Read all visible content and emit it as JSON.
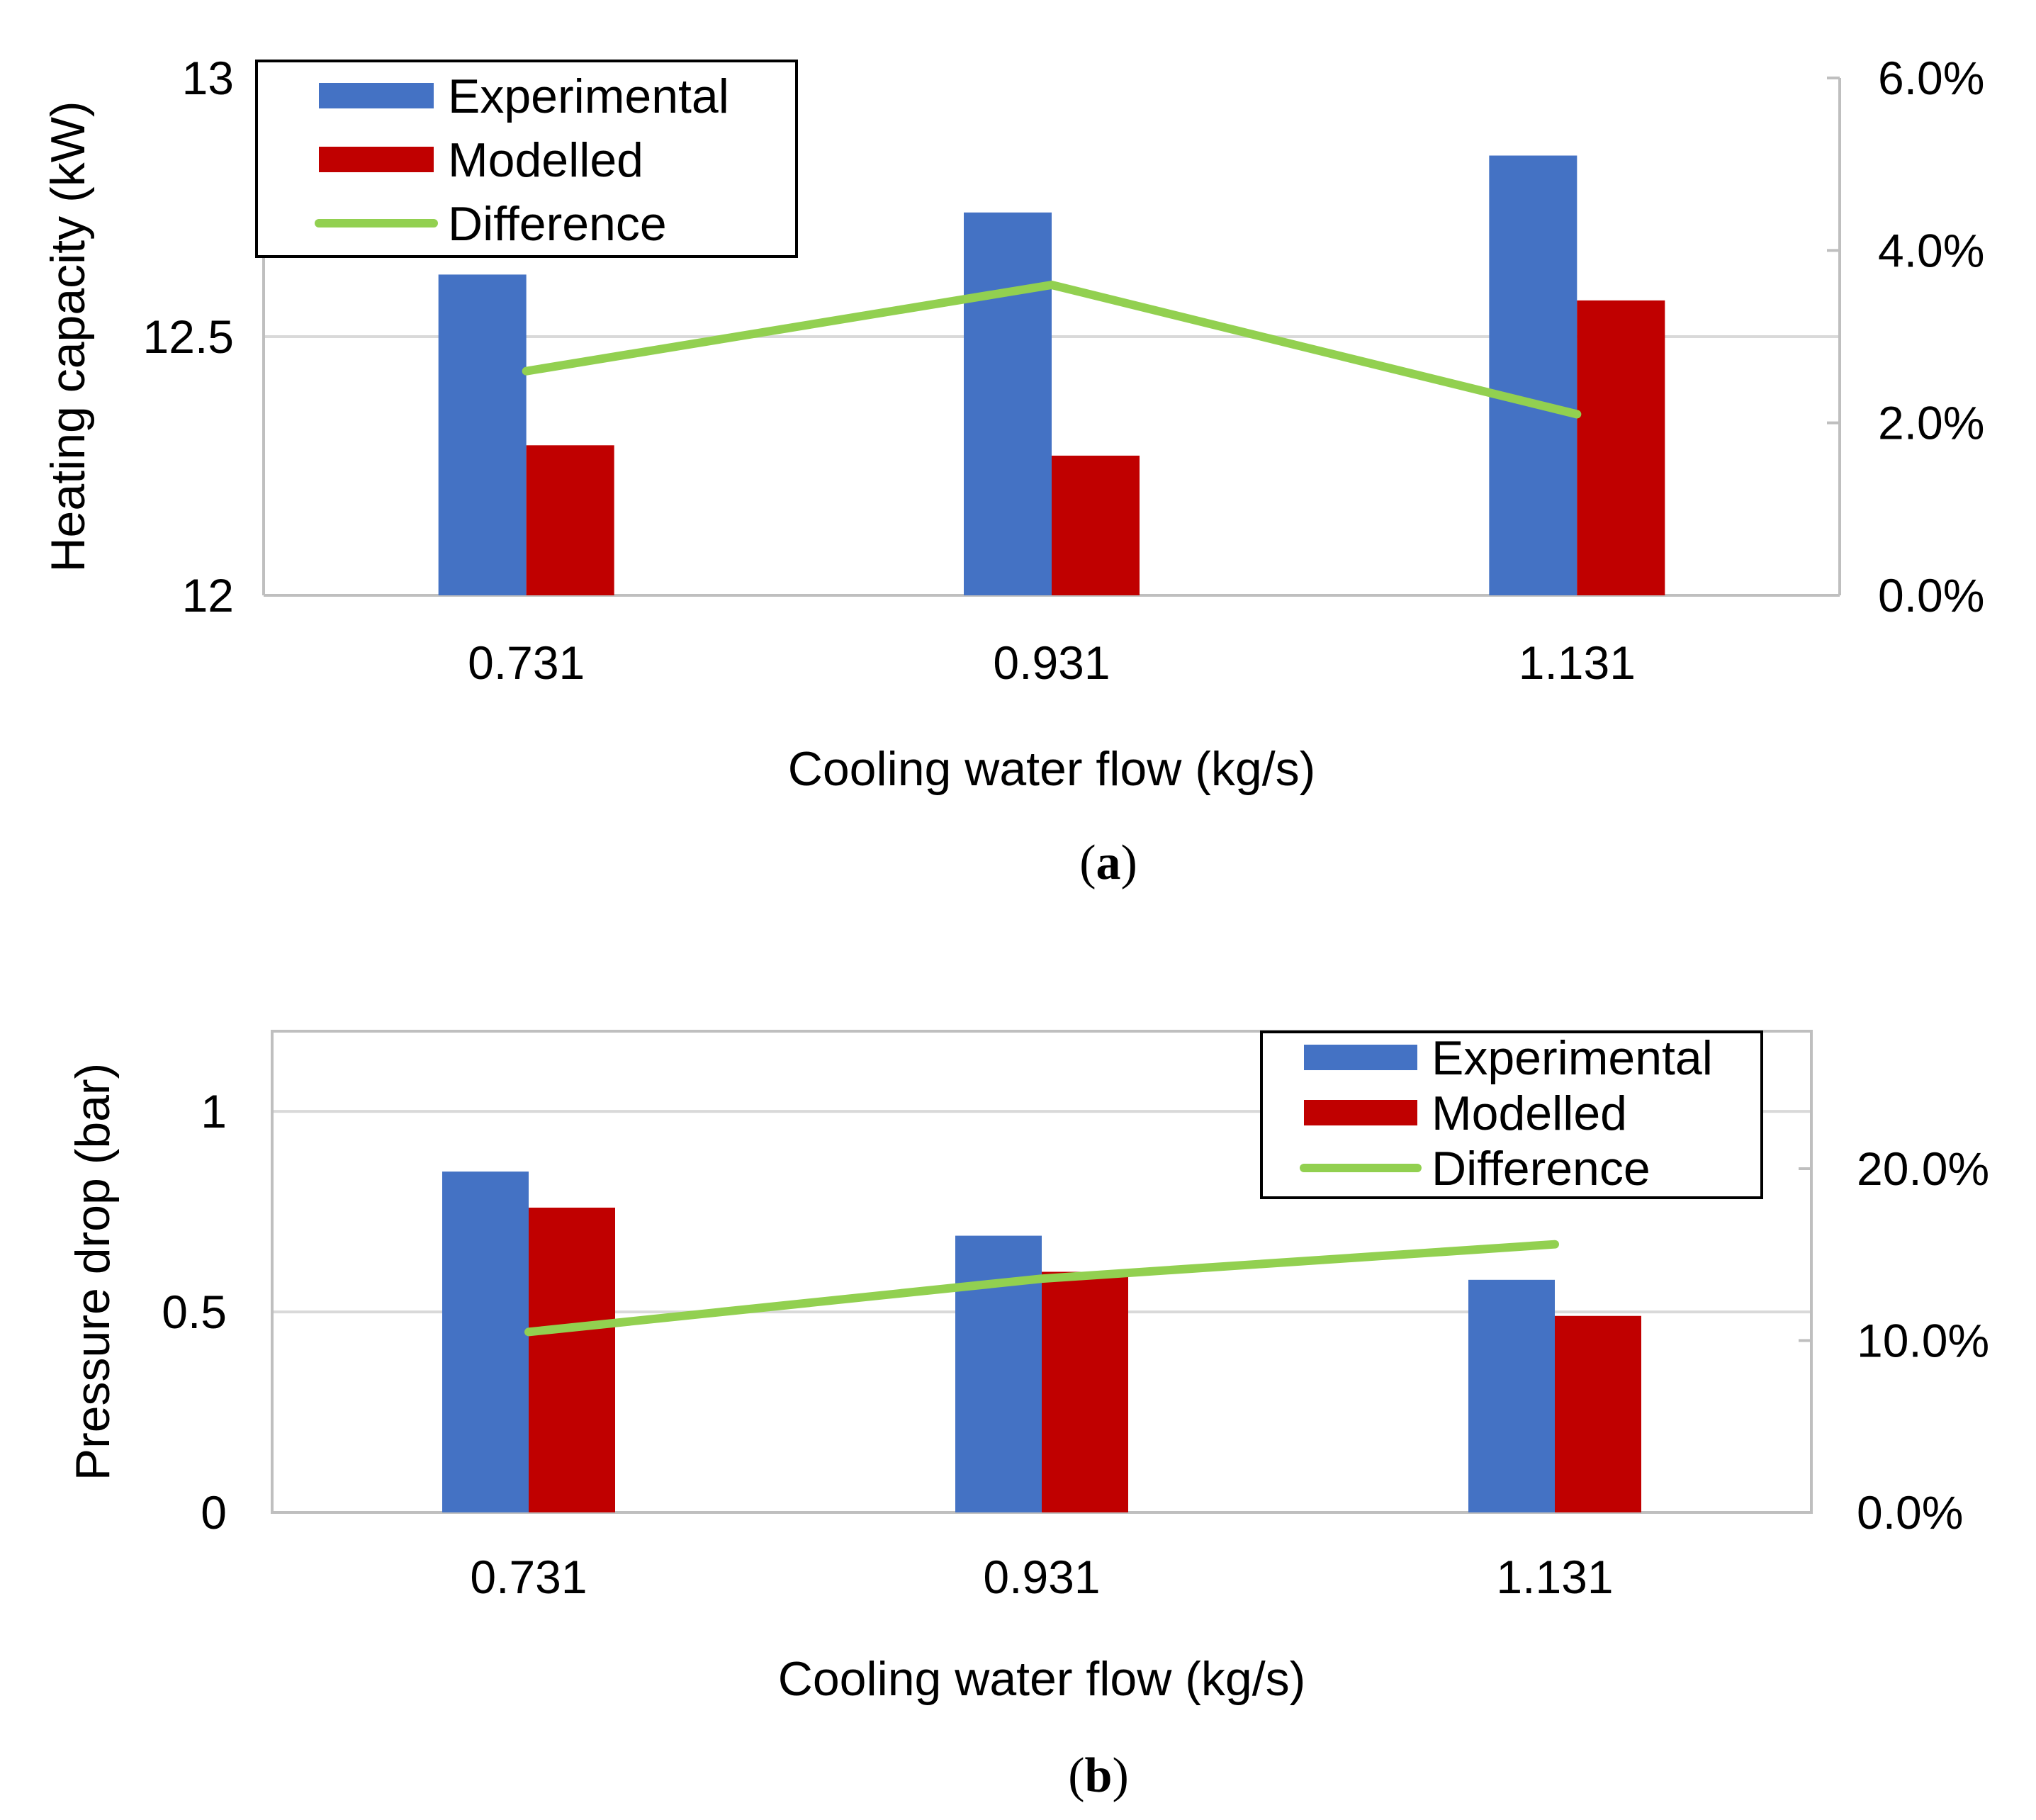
{
  "chart_data": [
    {
      "type": "bar",
      "panel": "a",
      "caption_letter": "a",
      "categories": [
        "0.731",
        "0.931",
        "1.131"
      ],
      "xlabel": "Cooling water flow (kg/s)",
      "ylabel": "Heating capacity (kW)",
      "ylim": [
        12,
        13
      ],
      "y_ticks": [
        "12",
        "12.5",
        "13"
      ],
      "y2lim": [
        0,
        0.06
      ],
      "y2_ticks": [
        "0.0%",
        "2.0%",
        "4.0%",
        "6.0%"
      ],
      "legend_position": "top-left",
      "colors": {
        "experimental": "#4472C4",
        "modelled": "#C00000",
        "difference": "#92D050",
        "grid": "#D9D9D9",
        "axis": "#BFBFBF"
      },
      "series": [
        {
          "name": "Experimental",
          "type": "bar",
          "axis": "left",
          "values": [
            12.62,
            12.74,
            12.85
          ]
        },
        {
          "name": "Modelled",
          "type": "bar",
          "axis": "left",
          "values": [
            12.29,
            12.27,
            12.57
          ]
        },
        {
          "name": "Difference",
          "type": "line",
          "axis": "right",
          "values": [
            0.026,
            0.036,
            0.021
          ]
        }
      ]
    },
    {
      "type": "bar",
      "panel": "b",
      "caption_letter": "b",
      "categories": [
        "0.731",
        "0.931",
        "1.131"
      ],
      "xlabel": "Cooling water flow (kg/s)",
      "ylabel": "Pressure drop (bar)",
      "ylim": [
        0,
        1.2
      ],
      "y_ticks": [
        "0",
        "0.5",
        "1"
      ],
      "y2lim": [
        0,
        0.28
      ],
      "y2_ticks": [
        "0.0%",
        "10.0%",
        "20.0%"
      ],
      "legend_position": "top-right",
      "colors": {
        "experimental": "#4472C4",
        "modelled": "#C00000",
        "difference": "#92D050",
        "grid": "#D9D9D9",
        "axis": "#BFBFBF"
      },
      "series": [
        {
          "name": "Experimental",
          "type": "bar",
          "axis": "left",
          "values": [
            0.85,
            0.69,
            0.58
          ]
        },
        {
          "name": "Modelled",
          "type": "bar",
          "axis": "left",
          "values": [
            0.76,
            0.6,
            0.49
          ]
        },
        {
          "name": "Difference",
          "type": "line",
          "axis": "right",
          "values": [
            0.105,
            0.136,
            0.156
          ]
        }
      ]
    }
  ]
}
